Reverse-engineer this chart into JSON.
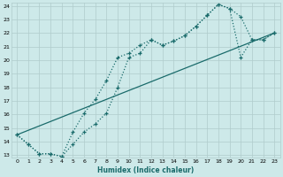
{
  "xlabel": "Humidex (Indice chaleur)",
  "bg_color": "#cde9e9",
  "grid_color": "#b0cccc",
  "line_color": "#1a6b6b",
  "xlim": [
    -0.5,
    23.5
  ],
  "ylim": [
    12.8,
    24.2
  ],
  "yticks": [
    13,
    14,
    15,
    16,
    17,
    18,
    19,
    20,
    21,
    22,
    23,
    24
  ],
  "xticks": [
    0,
    1,
    2,
    3,
    4,
    5,
    6,
    7,
    8,
    9,
    10,
    11,
    12,
    13,
    14,
    15,
    16,
    17,
    18,
    19,
    20,
    21,
    22,
    23
  ],
  "line1_x": [
    0,
    1,
    2,
    3,
    4,
    5,
    6,
    7,
    8,
    9,
    10,
    11,
    12,
    13,
    14,
    15,
    16,
    17,
    18,
    19,
    20,
    21,
    22,
    23
  ],
  "line1_y": [
    14.5,
    13.8,
    13.1,
    13.1,
    12.9,
    14.7,
    16.1,
    17.1,
    18.5,
    20.2,
    20.5,
    21.1,
    21.5,
    21.1,
    21.4,
    21.8,
    22.5,
    23.3,
    24.1,
    23.8,
    23.2,
    21.5,
    21.5,
    22.0
  ],
  "line2_x": [
    0,
    1,
    2,
    3,
    4,
    5,
    6,
    7,
    8,
    9,
    10,
    11,
    12,
    13,
    14,
    15,
    16,
    17,
    18,
    19,
    20,
    21,
    22,
    23
  ],
  "line2_y": [
    14.5,
    13.8,
    13.1,
    13.1,
    12.9,
    13.8,
    14.7,
    15.3,
    16.1,
    18.0,
    20.2,
    20.5,
    21.5,
    21.1,
    21.4,
    21.8,
    22.5,
    23.3,
    24.1,
    23.8,
    20.2,
    21.5,
    21.5,
    22.0
  ],
  "line3_x": [
    0,
    23
  ],
  "line3_y": [
    14.5,
    22.0
  ]
}
